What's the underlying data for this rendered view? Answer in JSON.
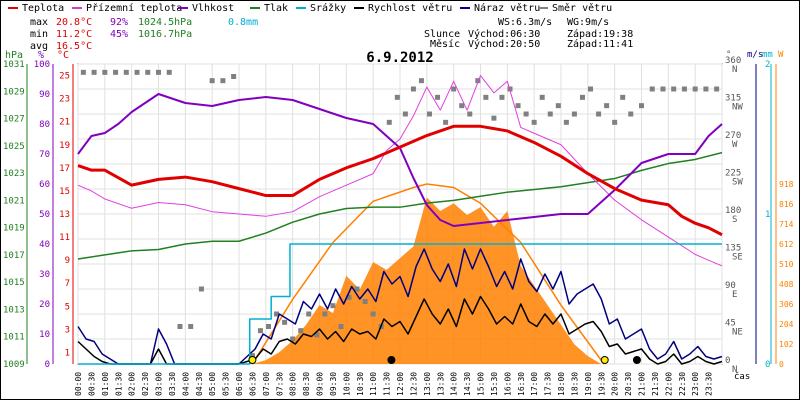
{
  "chart_data": {
    "type": "line",
    "title": "6.9.2012",
    "legend": [
      {
        "label": "Teplota",
        "color": "#e00000"
      },
      {
        "label": "Přízemní teplota",
        "color": "#d040d0"
      },
      {
        "label": "Vlhkost",
        "color": "#8000c0"
      },
      {
        "label": "Tlak",
        "color": "#208020"
      },
      {
        "label": "Srážky",
        "color": "#00b0d0"
      },
      {
        "label": "Rychlost větru",
        "color": "#000000"
      },
      {
        "label": "Náraz větru",
        "color": "#000080"
      },
      {
        "label": "Směr větru",
        "color": "#808080"
      }
    ],
    "stats": {
      "max": {
        "label": "max",
        "temp": "20.8°C",
        "hum": "92%",
        "press": "1024.5hPa",
        "rain": "0.8mm"
      },
      "min": {
        "label": "min",
        "temp": "11.2°C",
        "hum": "45%",
        "press": "1016.7hPa"
      },
      "avg": {
        "label": "avg",
        "temp": "16.5°C"
      }
    },
    "wind_info": {
      "ws": "WS:6.3m/s",
      "wg": "WG:9m/s"
    },
    "sun_info": {
      "label": "Slunce",
      "rise": "Východ:06:30",
      "set": "Západ:19:38"
    },
    "moon_info": {
      "label": "Měsíc",
      "rise": "Východ:20:50",
      "set": "Západ:11:41"
    },
    "axes_units": {
      "hpa": "hPa",
      "pct": "%",
      "degc": "°C",
      "deg": "°",
      "ms": "m/s",
      "mm": "mm",
      "w": "W",
      "time": "čas"
    },
    "pressure_ticks": [
      "1031",
      "1029",
      "1027",
      "1025",
      "1023",
      "1021",
      "1019",
      "1017",
      "1015",
      "1013",
      "1011",
      "1009"
    ],
    "humidity_ticks": [
      "100",
      "90",
      "80",
      "70",
      "60",
      "50",
      "40",
      "30",
      "20",
      "10",
      "0"
    ],
    "temp_ticks": [
      "25",
      "23",
      "21",
      "19",
      "17",
      "15",
      "13",
      "11",
      "9",
      "7",
      "5",
      "3",
      "1"
    ],
    "direction_ticks": [
      {
        "deg": "360",
        "dir": "N"
      },
      {
        "deg": "315",
        "dir": "NW"
      },
      {
        "deg": "270",
        "dir": "W"
      },
      {
        "deg": "225",
        "dir": "SW"
      },
      {
        "deg": "180",
        "dir": "S"
      },
      {
        "deg": "135",
        "dir": "SE"
      },
      {
        "deg": "90",
        "dir": "E"
      },
      {
        "deg": "45",
        "dir": "NE"
      },
      {
        "deg": "0",
        "dir": "N"
      }
    ],
    "wind_ticks": [
      "2",
      "1",
      "0"
    ],
    "solar_ticks": [
      "918",
      "816",
      "714",
      "612",
      "510",
      "408",
      "306",
      "204",
      "102",
      "0"
    ],
    "time_labels": [
      "00:00",
      "00:30",
      "01:00",
      "01:30",
      "02:00",
      "02:30",
      "03:00",
      "03:30",
      "04:00",
      "04:30",
      "05:00",
      "05:30",
      "06:00",
      "06:30",
      "07:00",
      "07:30",
      "08:00",
      "08:30",
      "09:00",
      "09:30",
      "10:00",
      "10:30",
      "11:00",
      "11:30",
      "12:00",
      "12:30",
      "13:00",
      "13:30",
      "14:00",
      "14:30",
      "15:00",
      "15:30",
      "16:00",
      "16:30",
      "17:00",
      "17:30",
      "18:00",
      "18:30",
      "19:00",
      "19:30",
      "20:00",
      "20:30",
      "21:00",
      "21:30",
      "22:00",
      "22:30",
      "23:00",
      "23:30"
    ],
    "series": [
      {
        "name": "Teplota",
        "axis": "temp",
        "color": "#e00000",
        "width": 3,
        "x": [
          0,
          0.5,
          1,
          2,
          3,
          4,
          5,
          6,
          7,
          8,
          9,
          10,
          11,
          12,
          13,
          14,
          15,
          16,
          17,
          18,
          19,
          20,
          21,
          22,
          22.5,
          23,
          23.5,
          24
        ],
        "y": [
          17.2,
          16.8,
          16.8,
          15.5,
          16.0,
          16.2,
          15.8,
          15.2,
          14.6,
          14.6,
          16.0,
          17.0,
          17.8,
          18.8,
          19.8,
          20.6,
          20.6,
          20.2,
          19.2,
          18.0,
          16.5,
          15.2,
          14.2,
          13.8,
          12.8,
          12.2,
          11.8,
          11.2
        ]
      },
      {
        "name": "Přízemní teplota",
        "axis": "temp",
        "color": "#e040e0",
        "width": 1,
        "x": [
          0,
          0.5,
          1,
          2,
          3,
          4,
          5,
          6,
          7,
          8,
          9,
          10,
          11,
          11.5,
          12,
          12.5,
          13,
          13.5,
          14,
          14.5,
          15,
          15.5,
          16,
          16.5,
          17,
          18,
          19,
          20,
          21,
          22,
          23,
          23.5,
          24
        ],
        "y": [
          15.5,
          15.0,
          14.3,
          13.5,
          14.0,
          13.8,
          13.2,
          13.0,
          12.8,
          13.2,
          14.5,
          15.5,
          16.5,
          18.5,
          19.5,
          21.5,
          24.0,
          22.0,
          24.5,
          22.0,
          25.0,
          23.5,
          24.5,
          20.5,
          20.0,
          19.0,
          16.5,
          14.2,
          12.5,
          11.0,
          9.5,
          9.0,
          8.5
        ]
      },
      {
        "name": "Vlhkost",
        "axis": "hum",
        "color": "#8000c0",
        "width": 2,
        "x": [
          0,
          0.5,
          1,
          1.5,
          2,
          3,
          4,
          5,
          6,
          7,
          8,
          9,
          10,
          11,
          12,
          12.5,
          13,
          13.5,
          14,
          15,
          16,
          17,
          18,
          19,
          20,
          21,
          22,
          23,
          23.5,
          24
        ],
        "y": [
          70,
          76,
          77,
          80,
          84,
          90,
          87,
          86,
          88,
          89,
          88,
          85,
          82,
          80,
          72,
          62,
          53,
          48,
          46,
          47,
          48,
          49,
          50,
          50,
          58,
          67,
          70,
          70,
          76,
          80
        ]
      },
      {
        "name": "Tlak",
        "axis": "press",
        "color": "#208020",
        "width": 1.5,
        "x": [
          0,
          1,
          2,
          3,
          4,
          5,
          6,
          7,
          8,
          9,
          10,
          11,
          12,
          13,
          14,
          15,
          16,
          17,
          18,
          19,
          20,
          21,
          22,
          23,
          24
        ],
        "y": [
          1016.7,
          1017.0,
          1017.3,
          1017.4,
          1017.8,
          1018.0,
          1018.0,
          1018.6,
          1019.4,
          1020.0,
          1020.4,
          1020.5,
          1020.5,
          1020.8,
          1021.0,
          1021.3,
          1021.6,
          1021.8,
          1022.0,
          1022.3,
          1022.6,
          1023.2,
          1023.7,
          1024.0,
          1024.5
        ]
      },
      {
        "name": "Srážky",
        "axis": "mm",
        "color": "#00b0d0",
        "width": 1.5,
        "step": true,
        "x": [
          0,
          6.4,
          6.4,
          7.2,
          7.2,
          7.9,
          7.9,
          24
        ],
        "y": [
          0,
          0,
          0.3,
          0.3,
          0.45,
          0.45,
          0.8,
          0.8
        ]
      }
    ],
    "wind_speed": {
      "name": "Rychlost větru",
      "axis": "ms",
      "color": "#000000",
      "x": [
        0,
        0.3,
        0.6,
        0.9,
        1.2,
        1.5,
        1.8,
        2.1,
        2.4,
        2.7,
        3.0,
        3.3,
        3.6,
        3.9,
        4.2,
        4.5,
        4.8,
        5.1,
        5.4,
        5.7,
        6.0,
        6.3,
        6.6,
        6.9,
        7.2,
        7.5,
        7.8,
        8.1,
        8.4,
        8.7,
        9.0,
        9.3,
        9.6,
        9.9,
        10.2,
        10.5,
        10.8,
        11.1,
        11.4,
        11.7,
        12.0,
        12.3,
        12.6,
        12.9,
        13.2,
        13.5,
        13.8,
        14.1,
        14.4,
        14.7,
        15.0,
        15.3,
        15.6,
        15.9,
        16.2,
        16.5,
        16.8,
        17.1,
        17.4,
        17.7,
        18.0,
        18.3,
        18.6,
        18.9,
        19.2,
        19.5,
        19.8,
        20.1,
        20.4,
        20.7,
        21.0,
        21.3,
        21.6,
        21.9,
        22.2,
        22.5,
        22.8,
        23.1,
        23.4,
        23.7,
        24.0
      ],
      "y": [
        0.9,
        0.6,
        0.3,
        0.1,
        0.0,
        0.0,
        0.0,
        0.0,
        0.0,
        0.0,
        0.6,
        0.0,
        0.0,
        0.0,
        0.0,
        0.0,
        0.0,
        0.0,
        0.0,
        0.0,
        0.0,
        0.1,
        0.2,
        0.6,
        0.4,
        0.9,
        1.0,
        0.8,
        1.2,
        1.1,
        1.4,
        1.0,
        1.3,
        0.9,
        1.4,
        1.2,
        1.3,
        1.0,
        1.8,
        1.5,
        1.7,
        1.2,
        1.9,
        2.6,
        2.0,
        1.6,
        2.2,
        1.5,
        2.6,
        2.0,
        2.7,
        2.2,
        1.6,
        1.9,
        1.6,
        2.4,
        1.7,
        1.5,
        2.0,
        1.6,
        2.0,
        1.2,
        1.4,
        1.6,
        1.7,
        1.3,
        0.7,
        0.8,
        0.4,
        0.5,
        0.6,
        0.2,
        0.0,
        0.1,
        0.4,
        0.0,
        0.1,
        0.3,
        0.1,
        0.0,
        0.1
      ]
    },
    "wind_gust": {
      "name": "Náraz větru",
      "axis": "ms",
      "color": "#000080",
      "x": [
        0,
        0.3,
        0.6,
        0.9,
        1.2,
        1.5,
        1.8,
        2.1,
        2.4,
        2.7,
        3.0,
        3.3,
        3.6,
        3.9,
        4.2,
        4.5,
        4.8,
        5.1,
        5.4,
        5.7,
        6.0,
        6.3,
        6.6,
        6.9,
        7.2,
        7.5,
        7.8,
        8.1,
        8.4,
        8.7,
        9.0,
        9.3,
        9.6,
        9.9,
        10.2,
        10.5,
        10.8,
        11.1,
        11.4,
        11.7,
        12.0,
        12.3,
        12.6,
        12.9,
        13.2,
        13.5,
        13.8,
        14.1,
        14.4,
        14.7,
        15.0,
        15.3,
        15.6,
        15.9,
        16.2,
        16.5,
        16.8,
        17.1,
        17.4,
        17.7,
        18.0,
        18.3,
        18.6,
        18.9,
        19.2,
        19.5,
        19.8,
        20.1,
        20.4,
        20.7,
        21.0,
        21.3,
        21.6,
        21.9,
        22.2,
        22.5,
        22.8,
        23.1,
        23.4,
        23.7,
        24.0
      ],
      "y": [
        1.5,
        1.0,
        0.9,
        0.4,
        0.2,
        0.0,
        0.0,
        0.0,
        0.0,
        0.0,
        1.4,
        0.8,
        0.0,
        0.0,
        0.0,
        0.0,
        0.0,
        0.0,
        0.0,
        0.0,
        0.0,
        0.3,
        0.6,
        1.2,
        1.0,
        2.0,
        1.8,
        1.6,
        2.5,
        2.2,
        2.8,
        2.2,
        3.0,
        2.4,
        3.1,
        2.6,
        3.0,
        2.5,
        3.7,
        3.2,
        3.5,
        2.7,
        3.9,
        4.6,
        3.8,
        3.3,
        4.0,
        3.1,
        4.6,
        3.8,
        4.6,
        3.9,
        3.1,
        3.7,
        3.0,
        4.2,
        3.3,
        2.9,
        3.6,
        3.0,
        3.7,
        2.4,
        2.8,
        3.0,
        3.2,
        2.6,
        1.6,
        1.8,
        1.0,
        1.2,
        1.4,
        0.6,
        0.2,
        0.4,
        0.9,
        0.2,
        0.4,
        0.7,
        0.3,
        0.2,
        0.3
      ]
    },
    "wind_direction": {
      "name": "Směr větru",
      "axis": "deg",
      "color": "#808080",
      "x": [
        0.2,
        0.6,
        1.0,
        1.4,
        1.8,
        2.2,
        2.6,
        3.0,
        3.4,
        3.8,
        4.2,
        4.6,
        5.0,
        5.4,
        5.8,
        6.5,
        6.8,
        7.1,
        7.4,
        7.7,
        8.0,
        8.3,
        8.6,
        8.9,
        9.2,
        9.5,
        9.8,
        10.1,
        10.4,
        10.7,
        11.0,
        11.3,
        11.6,
        11.9,
        12.2,
        12.5,
        12.8,
        13.1,
        13.4,
        13.7,
        14.0,
        14.3,
        14.6,
        14.9,
        15.2,
        15.5,
        15.8,
        16.1,
        16.4,
        16.7,
        17.0,
        17.3,
        17.6,
        17.9,
        18.2,
        18.5,
        18.8,
        19.1,
        19.4,
        19.7,
        20.0,
        20.3,
        20.6,
        21.0,
        21.4,
        21.8,
        22.2,
        22.6,
        23.0,
        23.4,
        23.8
      ],
      "y": [
        350,
        350,
        350,
        350,
        350,
        350,
        350,
        350,
        350,
        45,
        45,
        90,
        340,
        340,
        345,
        10,
        40,
        45,
        60,
        50,
        30,
        40,
        60,
        35,
        60,
        70,
        45,
        80,
        90,
        75,
        60,
        45,
        290,
        320,
        300,
        330,
        340,
        300,
        320,
        290,
        330,
        310,
        300,
        340,
        320,
        295,
        320,
        330,
        310,
        300,
        290,
        320,
        300,
        310,
        290,
        300,
        320,
        330,
        300,
        310,
        290,
        320,
        300,
        310,
        330,
        330,
        330,
        330,
        330,
        330,
        330
      ]
    },
    "solar": {
      "name": "solar",
      "axis": "w",
      "color": "#ff8000",
      "x": [
        6.5,
        7.0,
        7.5,
        8.0,
        8.5,
        9.0,
        9.5,
        10.0,
        10.5,
        11.0,
        11.5,
        12.0,
        12.5,
        13.0,
        13.5,
        14.0,
        14.5,
        15.0,
        15.5,
        16.0,
        16.5,
        17.0,
        17.5,
        18.0,
        18.5,
        19.0,
        19.5
      ],
      "y": [
        0,
        20,
        60,
        120,
        200,
        300,
        260,
        450,
        380,
        520,
        480,
        540,
        600,
        850,
        780,
        820,
        760,
        800,
        700,
        780,
        500,
        400,
        300,
        200,
        100,
        40,
        0
      ]
    },
    "solar_theoretical": {
      "x": [
        6.5,
        8,
        9.5,
        11,
        12.5,
        13,
        14,
        15,
        16.5,
        18,
        19.6
      ],
      "y": [
        0,
        330,
        620,
        830,
        900,
        918,
        900,
        820,
        620,
        300,
        0
      ]
    }
  }
}
